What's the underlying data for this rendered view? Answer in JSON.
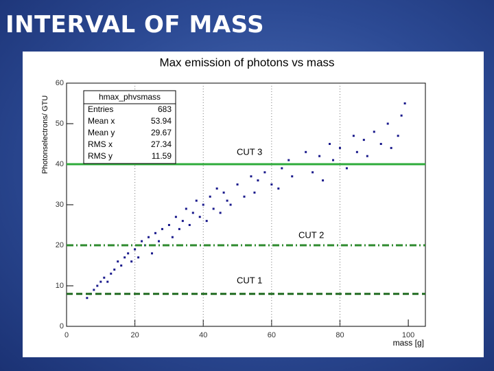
{
  "slide_title": "INTERVAL OF MASS",
  "chart_data": {
    "type": "scatter",
    "title": "Max emission of photons vs mass",
    "x_label": "mass [g]",
    "y_label": "Photonselectrons/ GTU",
    "xlim": [
      0,
      105
    ],
    "ylim": [
      0,
      60
    ],
    "xticks": [
      0,
      20,
      40,
      60,
      80,
      100
    ],
    "yticks": [
      0,
      10,
      20,
      30,
      40,
      50,
      60
    ],
    "color": "#1a1a8c",
    "x": [
      6,
      7,
      8,
      9,
      10,
      11,
      12,
      13,
      14,
      15,
      16,
      17,
      18,
      19,
      20,
      21,
      22,
      23,
      24,
      25,
      26,
      27,
      28,
      29,
      30,
      31,
      32,
      33,
      34,
      35,
      36,
      37,
      38,
      39,
      40,
      41,
      42,
      43,
      44,
      45,
      46,
      47,
      48,
      50,
      52,
      54,
      55,
      56,
      58,
      60,
      62,
      63,
      65,
      66,
      68,
      70,
      72,
      74,
      75,
      77,
      78,
      80,
      82,
      84,
      85,
      87,
      88,
      90,
      92,
      94,
      95,
      97,
      98,
      99
    ],
    "values": [
      7,
      8,
      9,
      10,
      11,
      12,
      11,
      13,
      14,
      16,
      15,
      17,
      18,
      16,
      19,
      17,
      21,
      20,
      22,
      18,
      23,
      21,
      24,
      20,
      25,
      22,
      27,
      24,
      26,
      29,
      25,
      28,
      31,
      27,
      30,
      26,
      32,
      29,
      34,
      28,
      33,
      31,
      30,
      35,
      32,
      37,
      33,
      36,
      38,
      35,
      34,
      39,
      41,
      37,
      40,
      43,
      38,
      42,
      36,
      45,
      41,
      44,
      39,
      47,
      43,
      46,
      42,
      48,
      45,
      50,
      44,
      47,
      52,
      55
    ],
    "stats": {
      "name": "hmax_phvsmass",
      "rows": [
        [
          "Entries",
          683
        ],
        [
          "Mean x",
          53.94
        ],
        [
          "Mean y",
          29.67
        ],
        [
          "RMS x",
          27.34
        ],
        [
          "RMS y",
          11.59
        ]
      ]
    },
    "cuts": [
      {
        "label": "CUT 3",
        "y": 40,
        "style": "solid",
        "color": "#2eab3a"
      },
      {
        "label": "CUT 2",
        "y": 20,
        "style": "dashdot",
        "color": "#2e8a2e"
      },
      {
        "label": "CUT 1",
        "y": 8,
        "style": "dashed",
        "color": "#1f6a1f"
      }
    ]
  }
}
